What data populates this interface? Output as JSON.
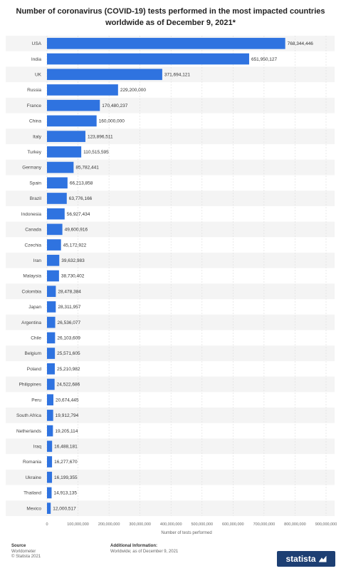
{
  "chart_data": {
    "type": "bar",
    "orientation": "horizontal",
    "title": "Number of coronavirus (COVID-19) tests performed in the most impacted countries worldwide as of December 9, 2021*",
    "xlabel": "Number of tests performed",
    "ylabel": "",
    "xlim": [
      0,
      900000000
    ],
    "x_ticks": [
      "0",
      "100,000,000",
      "200,000,000",
      "300,000,000",
      "400,000,000",
      "500,000,000",
      "600,000,000",
      "700,000,000",
      "800,000,000",
      "900,000,000"
    ],
    "grid": true,
    "bar_color": "#2f73e0",
    "categories": [
      "USA",
      "India",
      "UK",
      "Russia",
      "France",
      "China",
      "Italy",
      "Turkey",
      "Germany",
      "Spain",
      "Brazil",
      "Indonesia",
      "Canada",
      "Czechia",
      "Iran",
      "Malaysia",
      "Colombia",
      "Japan",
      "Argentina",
      "Chile",
      "Belgium",
      "Poland",
      "Philippines",
      "Peru",
      "South Africa",
      "Netherlands",
      "Iraq",
      "Romania",
      "Ukraine",
      "Thailand",
      "Mexico"
    ],
    "values": [
      768344446,
      651950127,
      371694121,
      229200000,
      170480237,
      160000000,
      123896511,
      110515595,
      85782441,
      66213858,
      63776166,
      56927434,
      49600916,
      45172922,
      39632983,
      38730402,
      28478384,
      28311957,
      26536077,
      26103609,
      25571605,
      25210982,
      24522686,
      20674445,
      19912794,
      19205114,
      16488181,
      16277670,
      16199355,
      14913135,
      12000517
    ],
    "value_labels": [
      "768,344,446",
      "651,950,127",
      "371,694,121",
      "229,200,000",
      "170,480,237",
      "160,000,000",
      "123,896,511",
      "110,515,595",
      "85,782,441",
      "66,213,858",
      "63,776,166",
      "56,927,434",
      "49,600,916",
      "45,172,922",
      "39,632,983",
      "38,730,402",
      "28,478,384",
      "28,311,957",
      "26,536,077",
      "26,103,609",
      "25,571,605",
      "25,210,982",
      "24,522,686",
      "20,674,445",
      "19,912,794",
      "19,205,114",
      "16,488,181",
      "16,277,670",
      "16,199,355",
      "14,913,135",
      "12,000,517"
    ]
  },
  "footer": {
    "source_heading": "Source",
    "source_name": "Worldometer",
    "source_copyright": "© Statista 2021",
    "info_heading": "Additional Information:",
    "info_text": "Worldwide; as of December 9, 2021"
  },
  "brand": {
    "name": "statista"
  }
}
